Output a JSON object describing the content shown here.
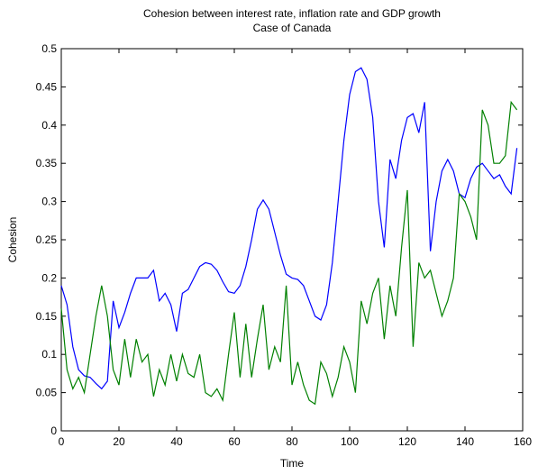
{
  "chart_data": {
    "type": "line",
    "title": "Cohesion between interest rate, inflation rate and GDP growth",
    "subtitle": "Case of Canada",
    "x_label": "Time",
    "y_label": "Cohesion",
    "x": [
      0,
      2,
      4,
      6,
      8,
      10,
      12,
      14,
      16,
      18,
      20,
      22,
      24,
      26,
      28,
      30,
      32,
      34,
      36,
      38,
      40,
      42,
      44,
      46,
      48,
      50,
      52,
      54,
      56,
      58,
      60,
      62,
      64,
      66,
      68,
      70,
      72,
      74,
      76,
      78,
      80,
      82,
      84,
      86,
      88,
      90,
      92,
      94,
      96,
      98,
      100,
      102,
      104,
      106,
      108,
      110,
      112,
      114,
      116,
      118,
      120,
      122,
      124,
      126,
      128,
      130,
      132,
      134,
      136,
      138,
      140,
      142,
      144,
      146,
      148,
      150,
      152,
      154,
      156,
      158
    ],
    "series": [
      {
        "color": "#0000ff",
        "values": [
          0.19,
          0.165,
          0.11,
          0.08,
          0.072,
          0.07,
          0.062,
          0.055,
          0.065,
          0.17,
          0.135,
          0.155,
          0.18,
          0.2,
          0.2,
          0.2,
          0.21,
          0.17,
          0.18,
          0.165,
          0.13,
          0.18,
          0.185,
          0.2,
          0.215,
          0.22,
          0.218,
          0.21,
          0.195,
          0.182,
          0.18,
          0.19,
          0.215,
          0.25,
          0.29,
          0.302,
          0.29,
          0.26,
          0.23,
          0.205,
          0.2,
          0.198,
          0.19,
          0.17,
          0.15,
          0.145,
          0.165,
          0.22,
          0.3,
          0.38,
          0.44,
          0.47,
          0.475,
          0.46,
          0.41,
          0.3,
          0.24,
          0.355,
          0.33,
          0.38,
          0.41,
          0.415,
          0.39,
          0.43,
          0.235,
          0.3,
          0.34,
          0.355,
          0.34,
          0.31,
          0.305,
          0.33,
          0.345,
          0.35,
          0.34,
          0.33,
          0.335,
          0.32,
          0.31,
          0.37
        ]
      },
      {
        "color": "#008000",
        "values": [
          0.16,
          0.08,
          0.055,
          0.07,
          0.05,
          0.1,
          0.15,
          0.19,
          0.15,
          0.08,
          0.06,
          0.12,
          0.07,
          0.12,
          0.09,
          0.1,
          0.045,
          0.08,
          0.06,
          0.1,
          0.065,
          0.1,
          0.075,
          0.07,
          0.1,
          0.05,
          0.045,
          0.055,
          0.04,
          0.1,
          0.155,
          0.07,
          0.14,
          0.07,
          0.12,
          0.165,
          0.08,
          0.11,
          0.09,
          0.19,
          0.06,
          0.09,
          0.06,
          0.04,
          0.035,
          0.09,
          0.075,
          0.045,
          0.07,
          0.11,
          0.09,
          0.05,
          0.17,
          0.14,
          0.18,
          0.2,
          0.12,
          0.19,
          0.15,
          0.24,
          0.315,
          0.11,
          0.22,
          0.2,
          0.21,
          0.18,
          0.15,
          0.17,
          0.2,
          0.31,
          0.3,
          0.28,
          0.25,
          0.42,
          0.4,
          0.35,
          0.35,
          0.36,
          0.43,
          0.42
        ]
      }
    ],
    "xlim": [
      0,
      160
    ],
    "xticks": [
      0,
      20,
      40,
      60,
      80,
      100,
      120,
      140,
      160
    ],
    "ylim": [
      0,
      0.5
    ],
    "yticks": [
      0,
      0.05,
      0.1,
      0.15,
      0.2,
      0.25,
      0.3,
      0.35,
      0.4,
      0.45,
      0.5
    ]
  }
}
